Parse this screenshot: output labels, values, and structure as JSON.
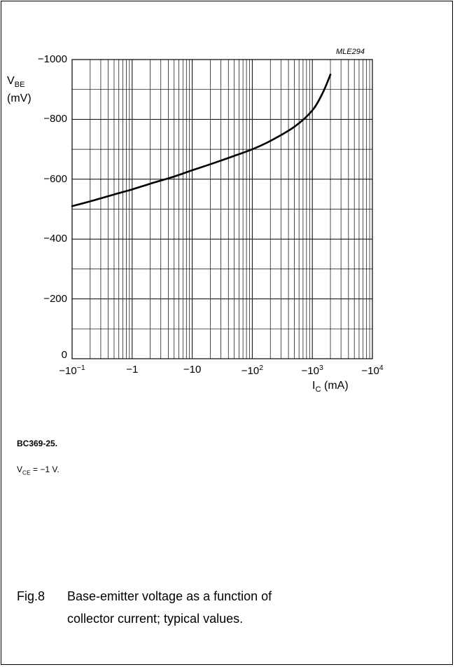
{
  "page": {
    "code": "MLE294",
    "model": "BC369-25.",
    "condition": {
      "symbol": "V",
      "subscript": "CE",
      "rest": " = −1 V."
    },
    "caption": {
      "number": "Fig.8",
      "line1": "Base-emitter voltage as a function of",
      "line2": "collector current; typical values."
    }
  },
  "chart_data": {
    "type": "line",
    "title": "",
    "x_scale": "log",
    "xlim": [
      -0.1,
      -10000
    ],
    "ylim": [
      0,
      -1000
    ],
    "ylabel": {
      "symbol": "V",
      "subscript": "BE",
      "unit": "(mV)"
    },
    "xlabel": {
      "symbol": "I",
      "subscript": "C",
      "unit": " (mA)"
    },
    "y_ticks": [
      {
        "value": -1000,
        "label": "−1000"
      },
      {
        "value": -800,
        "label": "−800"
      },
      {
        "value": -600,
        "label": "−600"
      },
      {
        "value": -400,
        "label": "−400"
      },
      {
        "value": -200,
        "label": "−200"
      },
      {
        "value": 0,
        "label": "0"
      }
    ],
    "x_ticks": [
      {
        "value": -0.1,
        "base": "−10",
        "sup": "−1"
      },
      {
        "value": -1,
        "base": "−1",
        "sup": ""
      },
      {
        "value": -10,
        "base": "−10",
        "sup": ""
      },
      {
        "value": -100,
        "base": "−10",
        "sup": "2"
      },
      {
        "value": -1000,
        "base": "−10",
        "sup": "3"
      },
      {
        "value": -10000,
        "base": "−10",
        "sup": "4"
      }
    ],
    "grid": true,
    "series": [
      {
        "x": [
          -0.1,
          -0.2,
          -0.5,
          -1,
          -2,
          -5,
          -10,
          -20,
          -50,
          -100,
          -200,
          -500,
          -1000,
          -1500,
          -2000
        ],
        "y": [
          -510,
          -526,
          -549,
          -566,
          -585,
          -609,
          -630,
          -650,
          -678,
          -700,
          -728,
          -775,
          -830,
          -890,
          -950
        ]
      }
    ]
  }
}
